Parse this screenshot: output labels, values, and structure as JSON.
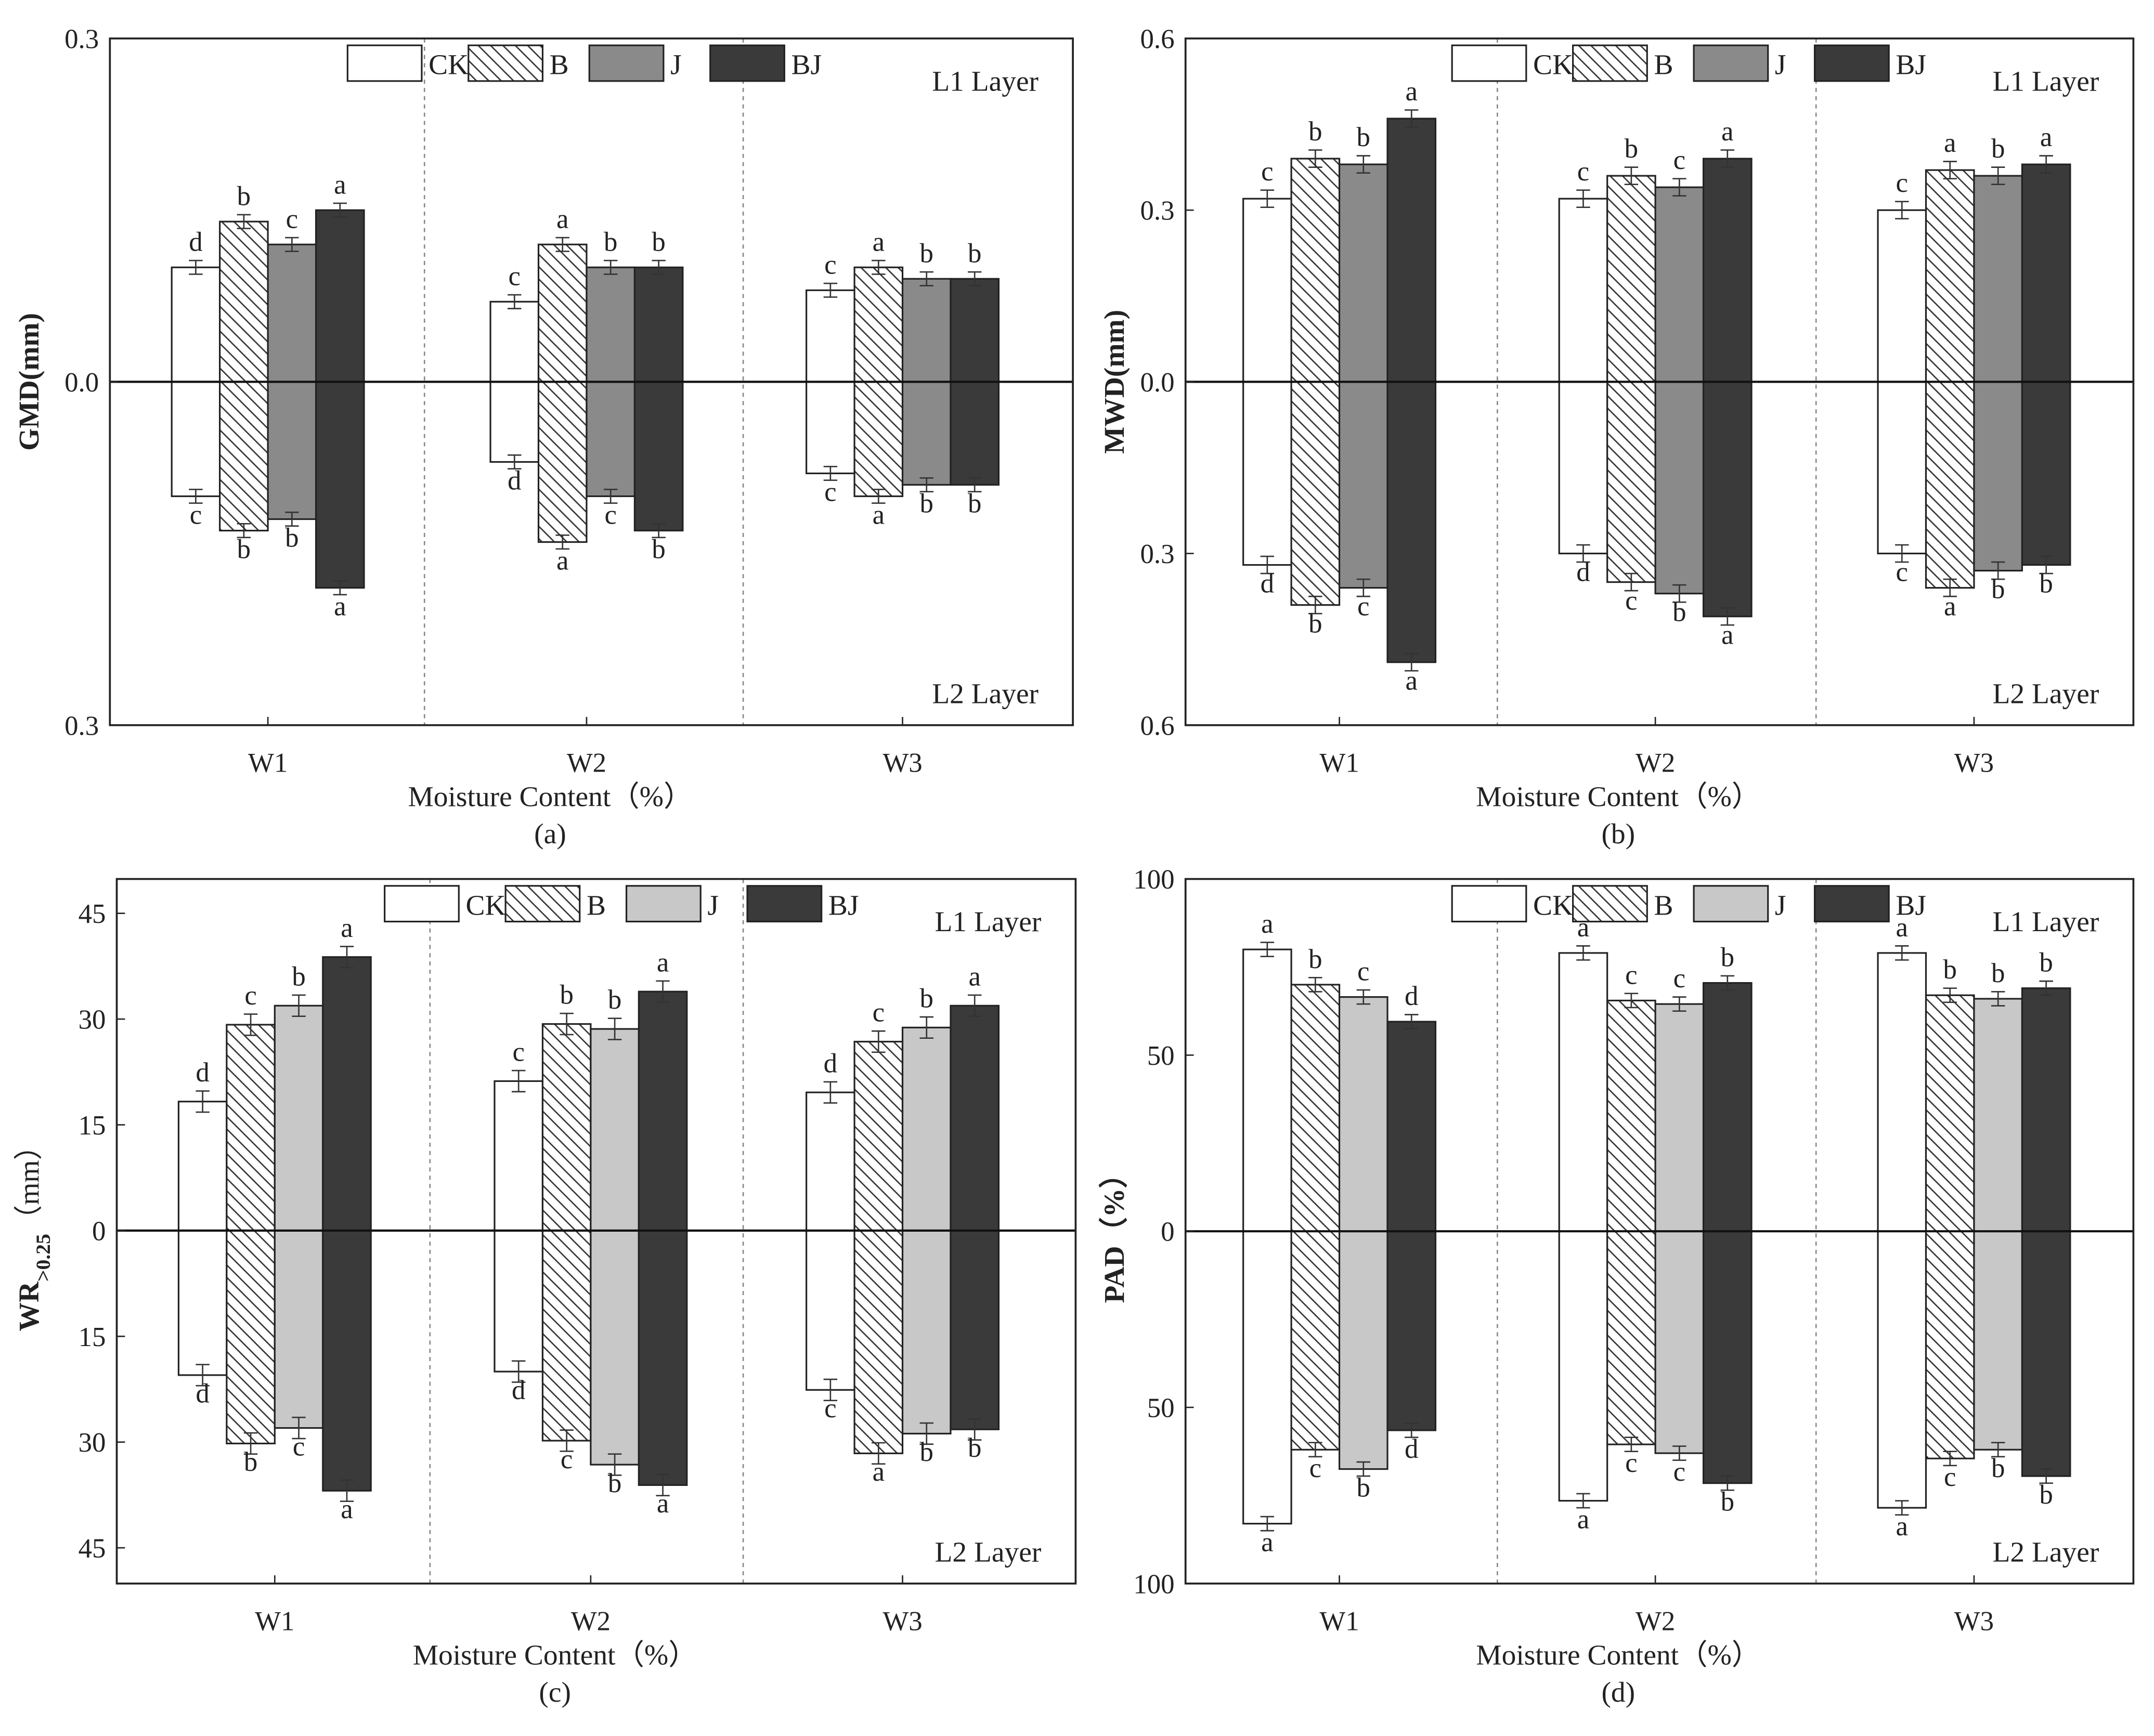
{
  "legend_labels": [
    "CK",
    "B",
    "J",
    "BJ"
  ],
  "layer_top": "L1 Layer",
  "layer_bottom": "L2 Layer",
  "colors": {
    "CK": "#ffffff",
    "J_ab": "#8a8a8a",
    "J_cd": "#c8c8c8",
    "BJ": "#3a3a3a",
    "axis": "#222222"
  },
  "chart_data": [
    {
      "type": "bar",
      "panel": "(a)",
      "ylabel": "GMD(mm)",
      "ylabel_sub": "",
      "ylabel_unit": "",
      "xlabel": "Moisture Content（%）",
      "categories": [
        "W1",
        "W2",
        "W3"
      ],
      "ylim": [
        -0.3,
        0.3
      ],
      "yticks": [
        0.3,
        0,
        -0.3
      ],
      "ytick_labels": [
        "0.3",
        "0.0",
        "0.3"
      ],
      "error_approx": 0.006,
      "J_color": "J_ab",
      "series": [
        {
          "name": "CK",
          "L1": [
            0.1,
            0.07,
            0.08
          ],
          "L2": [
            0.1,
            0.07,
            0.08
          ],
          "L1_letters": [
            "d",
            "c",
            "c"
          ],
          "L2_letters": [
            "c",
            "d",
            "c"
          ]
        },
        {
          "name": "B",
          "L1": [
            0.14,
            0.12,
            0.1
          ],
          "L2": [
            0.13,
            0.14,
            0.1
          ],
          "L1_letters": [
            "b",
            "a",
            "a"
          ],
          "L2_letters": [
            "b",
            "a",
            "a"
          ]
        },
        {
          "name": "J",
          "L1": [
            0.12,
            0.1,
            0.09
          ],
          "L2": [
            0.12,
            0.1,
            0.09
          ],
          "L1_letters": [
            "c",
            "b",
            "b"
          ],
          "L2_letters": [
            "b",
            "c",
            "b"
          ]
        },
        {
          "name": "BJ",
          "L1": [
            0.15,
            0.1,
            0.09
          ],
          "L2": [
            0.18,
            0.13,
            0.09
          ],
          "L1_letters": [
            "a",
            "b",
            "b"
          ],
          "L2_letters": [
            "a",
            "b",
            "b"
          ]
        }
      ]
    },
    {
      "type": "bar",
      "panel": "(b)",
      "ylabel": "MWD(mm)",
      "ylabel_sub": "",
      "ylabel_unit": "",
      "xlabel": "Moisture Content（%）",
      "categories": [
        "W1",
        "W2",
        "W3"
      ],
      "ylim": [
        -0.6,
        0.6
      ],
      "yticks": [
        0.6,
        0.3,
        0,
        -0.3,
        -0.6
      ],
      "ytick_labels": [
        "0.6",
        "0.3",
        "0.0",
        "0.3",
        "0.6"
      ],
      "error_approx": 0.015,
      "J_color": "J_ab",
      "series": [
        {
          "name": "CK",
          "L1": [
            0.32,
            0.32,
            0.3
          ],
          "L2": [
            0.32,
            0.3,
            0.3
          ],
          "L1_letters": [
            "c",
            "c",
            "c"
          ],
          "L2_letters": [
            "d",
            "d",
            "c"
          ]
        },
        {
          "name": "B",
          "L1": [
            0.39,
            0.36,
            0.37
          ],
          "L2": [
            0.39,
            0.35,
            0.36
          ],
          "L1_letters": [
            "b",
            "b",
            "a"
          ],
          "L2_letters": [
            "b",
            "c",
            "a"
          ]
        },
        {
          "name": "J",
          "L1": [
            0.38,
            0.34,
            0.36
          ],
          "L2": [
            0.36,
            0.37,
            0.33
          ],
          "L1_letters": [
            "b",
            "c",
            "b"
          ],
          "L2_letters": [
            "c",
            "b",
            "b"
          ]
        },
        {
          "name": "BJ",
          "L1": [
            0.46,
            0.39,
            0.38
          ],
          "L2": [
            0.49,
            0.41,
            0.32
          ],
          "L1_letters": [
            "a",
            "a",
            "a"
          ],
          "L2_letters": [
            "a",
            "a",
            "b"
          ]
        }
      ]
    },
    {
      "type": "bar",
      "panel": "(c)",
      "ylabel": "WR",
      "ylabel_sub": ">0.25",
      "ylabel_unit": "（mm）",
      "xlabel": "Moisture Content（%）",
      "categories": [
        "W1",
        "W2",
        "W3"
      ],
      "ylim": [
        -45,
        45
      ],
      "yticks": [
        45,
        30,
        15,
        0,
        -15,
        -30,
        -45
      ],
      "ytick_labels": [
        "45",
        "30",
        "15",
        "0",
        "15",
        "30",
        "45"
      ],
      "error_approx": 1.5,
      "J_color": "J_cd",
      "series": [
        {
          "name": "CK",
          "L1": [
            18.3,
            21.2,
            19.6
          ],
          "L2": [
            20.5,
            20.0,
            22.6
          ],
          "L1_letters": [
            "d",
            "c",
            "d"
          ],
          "L2_letters": [
            "d",
            "d",
            "c"
          ]
        },
        {
          "name": "B",
          "L1": [
            29.2,
            29.3,
            26.8
          ],
          "L2": [
            30.2,
            29.8,
            31.6
          ],
          "L1_letters": [
            "c",
            "b",
            "c"
          ],
          "L2_letters": [
            "b",
            "c",
            "a"
          ]
        },
        {
          "name": "J",
          "L1": [
            31.9,
            28.6,
            28.8
          ],
          "L2": [
            28.0,
            33.2,
            28.8
          ],
          "L1_letters": [
            "b",
            "b",
            "b"
          ],
          "L2_letters": [
            "c",
            "b",
            "b"
          ]
        },
        {
          "name": "BJ",
          "L1": [
            38.8,
            33.9,
            31.9
          ],
          "L2": [
            36.9,
            36.1,
            28.2
          ],
          "L1_letters": [
            "a",
            "a",
            "a"
          ],
          "L2_letters": [
            "a",
            "a",
            "b"
          ]
        }
      ]
    },
    {
      "type": "bar",
      "panel": "(d)",
      "ylabel": "PAD（%）",
      "ylabel_sub": "",
      "ylabel_unit": "",
      "xlabel": "Moisture Content（%）",
      "categories": [
        "W1",
        "W2",
        "W3"
      ],
      "ylim": [
        -100,
        100
      ],
      "yticks": [
        100,
        50,
        0,
        -50,
        -100
      ],
      "ytick_labels": [
        "100",
        "50",
        "0",
        "50",
        "100"
      ],
      "error_approx": 2,
      "J_color": "J_cd",
      "series": [
        {
          "name": "CK",
          "L1": [
            80,
            79,
            79
          ],
          "L2": [
            83,
            76.5,
            78.5
          ],
          "L1_letters": [
            "a",
            "a",
            "a"
          ],
          "L2_letters": [
            "a",
            "a",
            "a"
          ]
        },
        {
          "name": "B",
          "L1": [
            70,
            65.5,
            67
          ],
          "L2": [
            62,
            60.5,
            64.5
          ],
          "L1_letters": [
            "b",
            "c",
            "b"
          ],
          "L2_letters": [
            "c",
            "c",
            "c"
          ]
        },
        {
          "name": "J",
          "L1": [
            66.5,
            64.5,
            66
          ],
          "L2": [
            67.5,
            63,
            62
          ],
          "L1_letters": [
            "c",
            "c",
            "b"
          ],
          "L2_letters": [
            "b",
            "c",
            "b"
          ]
        },
        {
          "name": "BJ",
          "L1": [
            59.5,
            70.5,
            69
          ],
          "L2": [
            56.5,
            71.5,
            69.5
          ],
          "L1_letters": [
            "d",
            "b",
            "b"
          ],
          "L2_letters": [
            "d",
            "b",
            "b"
          ]
        }
      ]
    }
  ]
}
